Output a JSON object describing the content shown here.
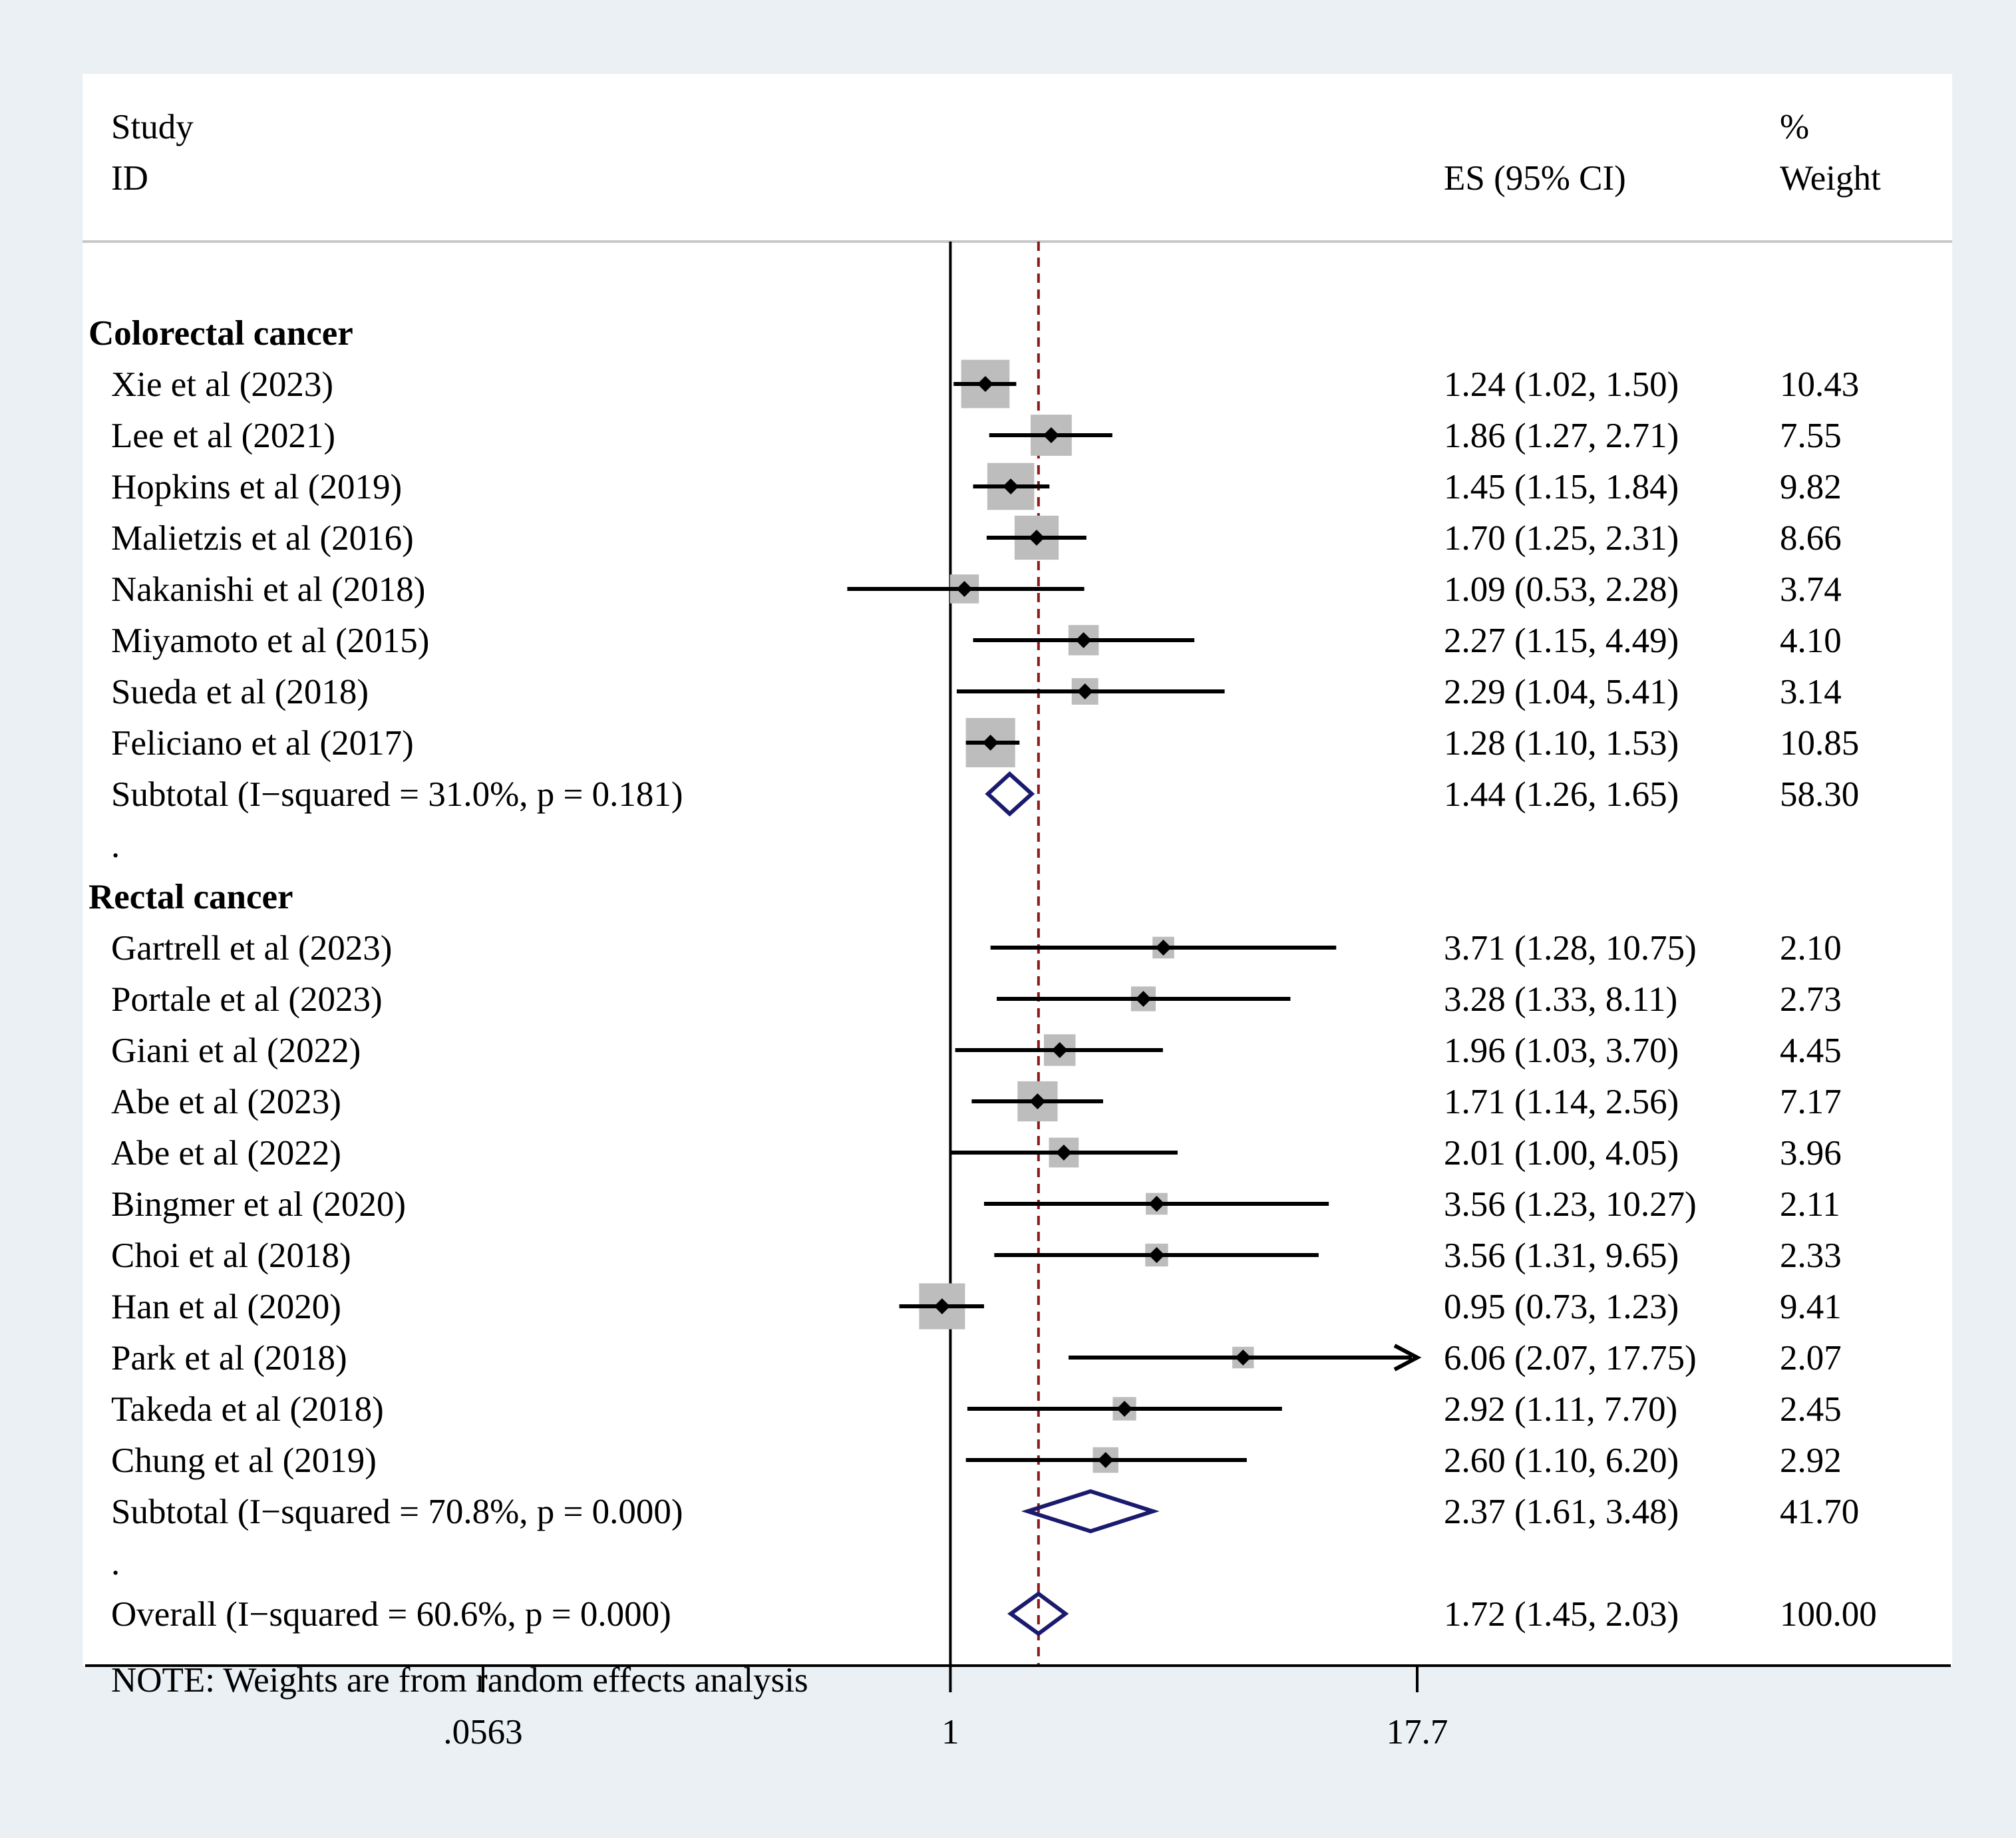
{
  "chart_data": {
    "type": "forest",
    "scale": "log",
    "headers": {
      "study_line1": "Study",
      "study_line2": "ID",
      "es": "ES (95% CI)",
      "weight_line1": "%",
      "weight_line2": "Weight"
    },
    "reference_line": 1,
    "overall_line": 1.72,
    "x_ticks": [
      {
        "value": 0.0563,
        "label": ".0563"
      },
      {
        "value": 1,
        "label": "1"
      },
      {
        "value": 17.7,
        "label": "17.7"
      }
    ],
    "axis_display_max": 17.7,
    "groups": [
      {
        "name": "Colorectal cancer",
        "studies": [
          {
            "label": "Xie et al (2023)",
            "es": 1.24,
            "lo": 1.02,
            "hi": 1.5,
            "es_text": "1.24 (1.02, 1.50)",
            "weight": 10.43,
            "weight_text": "10.43"
          },
          {
            "label": "Lee et al (2021)",
            "es": 1.86,
            "lo": 1.27,
            "hi": 2.71,
            "es_text": "1.86 (1.27, 2.71)",
            "weight": 7.55,
            "weight_text": "7.55"
          },
          {
            "label": "Hopkins et al (2019)",
            "es": 1.45,
            "lo": 1.15,
            "hi": 1.84,
            "es_text": "1.45 (1.15, 1.84)",
            "weight": 9.82,
            "weight_text": "9.82"
          },
          {
            "label": "Malietzis et al (2016)",
            "es": 1.7,
            "lo": 1.25,
            "hi": 2.31,
            "es_text": "1.70 (1.25, 2.31)",
            "weight": 8.66,
            "weight_text": "8.66"
          },
          {
            "label": "Nakanishi et al (2018)",
            "es": 1.09,
            "lo": 0.53,
            "hi": 2.28,
            "es_text": "1.09 (0.53, 2.28)",
            "weight": 3.74,
            "weight_text": "3.74"
          },
          {
            "label": "Miyamoto et al (2015)",
            "es": 2.27,
            "lo": 1.15,
            "hi": 4.49,
            "es_text": "2.27 (1.15, 4.49)",
            "weight": 4.1,
            "weight_text": "4.10"
          },
          {
            "label": "Sueda et al (2018)",
            "es": 2.29,
            "lo": 1.04,
            "hi": 5.41,
            "es_text": "2.29 (1.04, 5.41)",
            "weight": 3.14,
            "weight_text": "3.14"
          },
          {
            "label": "Feliciano et al (2017)",
            "es": 1.28,
            "lo": 1.1,
            "hi": 1.53,
            "es_text": "1.28 (1.10, 1.53)",
            "weight": 10.85,
            "weight_text": "10.85"
          }
        ],
        "subtotal": {
          "label": "Subtotal  (I−squared = 31.0%, p = 0.181)",
          "es": 1.44,
          "lo": 1.26,
          "hi": 1.65,
          "es_text": "1.44 (1.26, 1.65)",
          "weight_text": "58.30"
        }
      },
      {
        "name": "Rectal cancer",
        "studies": [
          {
            "label": "Gartrell et al (2023)",
            "es": 3.71,
            "lo": 1.28,
            "hi": 10.75,
            "es_text": "3.71 (1.28, 10.75)",
            "weight": 2.1,
            "weight_text": "2.10"
          },
          {
            "label": "Portale et al (2023)",
            "es": 3.28,
            "lo": 1.33,
            "hi": 8.11,
            "es_text": "3.28 (1.33, 8.11)",
            "weight": 2.73,
            "weight_text": "2.73"
          },
          {
            "label": "Giani et al (2022)",
            "es": 1.96,
            "lo": 1.03,
            "hi": 3.7,
            "es_text": "1.96 (1.03, 3.70)",
            "weight": 4.45,
            "weight_text": "4.45"
          },
          {
            "label": "Abe et al (2023)",
            "es": 1.71,
            "lo": 1.14,
            "hi": 2.56,
            "es_text": "1.71 (1.14, 2.56)",
            "weight": 7.17,
            "weight_text": "7.17"
          },
          {
            "label": "Abe et al (2022)",
            "es": 2.01,
            "lo": 1.0,
            "hi": 4.05,
            "es_text": "2.01 (1.00, 4.05)",
            "weight": 3.96,
            "weight_text": "3.96"
          },
          {
            "label": "Bingmer et al (2020)",
            "es": 3.56,
            "lo": 1.23,
            "hi": 10.27,
            "es_text": "3.56 (1.23, 10.27)",
            "weight": 2.11,
            "weight_text": "2.11"
          },
          {
            "label": "Choi et al (2018)",
            "es": 3.56,
            "lo": 1.31,
            "hi": 9.65,
            "es_text": "3.56 (1.31, 9.65)",
            "weight": 2.33,
            "weight_text": "2.33"
          },
          {
            "label": "Han et al (2020)",
            "es": 0.95,
            "lo": 0.73,
            "hi": 1.23,
            "es_text": "0.95 (0.73, 1.23)",
            "weight": 9.41,
            "weight_text": "9.41"
          },
          {
            "label": "Park et al (2018)",
            "es": 6.06,
            "lo": 2.07,
            "hi": 17.75,
            "es_text": "6.06 (2.07, 17.75)",
            "weight": 2.07,
            "weight_text": "2.07"
          },
          {
            "label": "Takeda et al (2018)",
            "es": 2.92,
            "lo": 1.11,
            "hi": 7.7,
            "es_text": "2.92 (1.11, 7.70)",
            "weight": 2.45,
            "weight_text": "2.45"
          },
          {
            "label": "Chung et al (2019)",
            "es": 2.6,
            "lo": 1.1,
            "hi": 6.2,
            "es_text": "2.60 (1.10, 6.20)",
            "weight": 2.92,
            "weight_text": "2.92"
          }
        ],
        "subtotal": {
          "label": "Subtotal  (I−squared = 70.8%, p = 0.000)",
          "es": 2.37,
          "lo": 1.61,
          "hi": 3.48,
          "es_text": "2.37 (1.61, 3.48)",
          "weight_text": "41.70"
        }
      }
    ],
    "separator_text": ".",
    "overall": {
      "label": "Overall  (I−squared = 60.6%, p = 0.000)",
      "es": 1.72,
      "lo": 1.45,
      "hi": 2.03,
      "es_text": "1.72 (1.45, 2.03)",
      "weight_text": "100.00"
    },
    "note": "NOTE: Weights are from random effects analysis",
    "colors": {
      "background": "#eaf0f3",
      "panel": "#ffffff",
      "weight_box": "#bdbdbd",
      "diamond": "#1a1a6e",
      "overall_line": "#8b1a1a",
      "ink": "#000000",
      "header_rule": "#c8c8c8"
    }
  }
}
